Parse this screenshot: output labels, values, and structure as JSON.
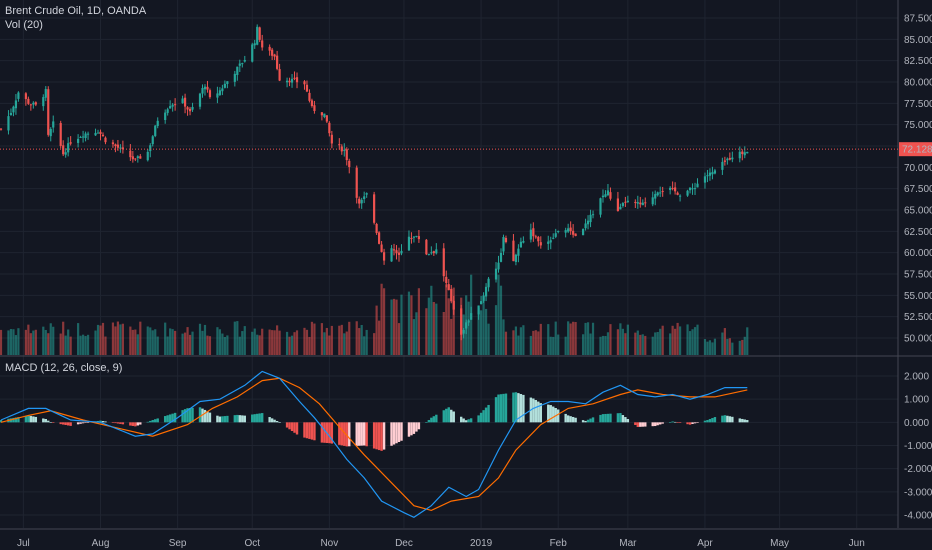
{
  "legend": {
    "symbol": "Brent Crude Oil, 1D, OANDA",
    "vol": "Vol (20)",
    "macd": "MACD (12, 26, close, 9)"
  },
  "last_price": "72.128",
  "colors": {
    "background": "#131722",
    "up": "#26a69a",
    "down": "#ef5350",
    "macd_line": "#2196f3",
    "signal_line": "#ff6d00",
    "hist_up_strong": "#26a69a",
    "hist_up_weak": "#b2dfdb",
    "hist_down_strong": "#ef5350",
    "hist_down_weak": "#ffcdd2",
    "price_line": "#ef5350"
  },
  "chart_data": [
    {
      "type": "candlestick",
      "title": "Brent Crude Oil, 1D, OANDA",
      "y_ticks": [
        "87.500",
        "85.000",
        "82.500",
        "80.000",
        "77.500",
        "75.000",
        "72.500",
        "70.000",
        "67.500",
        "65.000",
        "62.500",
        "60.000",
        "57.500",
        "55.000",
        "52.500",
        "50.000"
      ],
      "ylim": [
        48.5,
        88.5
      ],
      "x_ticks": [
        "Jul",
        "Aug",
        "Sep",
        "Oct",
        "Nov",
        "Dec",
        "2019",
        "Feb",
        "Mar",
        "Apr",
        "May",
        "Jun"
      ],
      "x_range": [
        "2018-06-22",
        "2019-06-18"
      ],
      "last_value": 72.128,
      "grid": true,
      "close_path": [
        [
          "2018-06-22",
          74.5
        ],
        [
          "2018-06-26",
          76.5
        ],
        [
          "2018-06-29",
          78.8
        ],
        [
          "2018-07-03",
          77.6
        ],
        [
          "2018-07-06",
          77.2
        ],
        [
          "2018-07-10",
          78.9
        ],
        [
          "2018-07-11",
          73.6
        ],
        [
          "2018-07-13",
          75.1
        ],
        [
          "2018-07-17",
          71.6
        ],
        [
          "2018-07-20",
          73.0
        ],
        [
          "2018-07-25",
          73.9
        ],
        [
          "2018-07-31",
          74.3
        ],
        [
          "2018-08-03",
          73.2
        ],
        [
          "2018-08-08",
          72.3
        ],
        [
          "2018-08-15",
          70.8
        ],
        [
          "2018-08-20",
          71.8
        ],
        [
          "2018-08-24",
          75.6
        ],
        [
          "2018-08-29",
          77.4
        ],
        [
          "2018-09-03",
          77.8
        ],
        [
          "2018-09-06",
          76.4
        ],
        [
          "2018-09-12",
          79.7
        ],
        [
          "2018-09-14",
          78.0
        ],
        [
          "2018-09-18",
          79.0
        ],
        [
          "2018-09-24",
          81.2
        ],
        [
          "2018-09-28",
          82.7
        ],
        [
          "2018-10-02",
          84.8
        ],
        [
          "2018-10-03",
          86.2
        ],
        [
          "2018-10-05",
          84.1
        ],
        [
          "2018-10-10",
          83.0
        ],
        [
          "2018-10-12",
          80.4
        ],
        [
          "2018-10-17",
          80.2
        ],
        [
          "2018-10-22",
          79.8
        ],
        [
          "2018-10-25",
          76.9
        ],
        [
          "2018-10-30",
          76.2
        ],
        [
          "2018-11-02",
          72.8
        ],
        [
          "2018-11-07",
          72.0
        ],
        [
          "2018-11-09",
          70.1
        ],
        [
          "2018-11-13",
          65.6
        ],
        [
          "2018-11-16",
          66.8
        ],
        [
          "2018-11-20",
          62.5
        ],
        [
          "2018-11-23",
          58.8
        ],
        [
          "2018-11-26",
          60.5
        ],
        [
          "2018-11-29",
          59.5
        ],
        [
          "2018-12-03",
          62.0
        ],
        [
          "2018-12-07",
          61.7
        ],
        [
          "2018-12-10",
          59.9
        ],
        [
          "2018-12-14",
          60.3
        ],
        [
          "2018-12-18",
          56.3
        ],
        [
          "2018-12-20",
          54.4
        ],
        [
          "2018-12-24",
          50.6
        ],
        [
          "2018-12-27",
          52.2
        ],
        [
          "2019-01-02",
          54.9
        ],
        [
          "2019-01-04",
          57.1
        ],
        [
          "2019-01-08",
          58.7
        ],
        [
          "2019-01-10",
          61.7
        ],
        [
          "2019-01-14",
          59.0
        ],
        [
          "2019-01-17",
          61.2
        ],
        [
          "2019-01-21",
          62.7
        ],
        [
          "2019-01-24",
          61.1
        ],
        [
          "2019-01-29",
          61.3
        ],
        [
          "2019-02-01",
          62.7
        ],
        [
          "2019-02-06",
          62.6
        ],
        [
          "2019-02-08",
          61.9
        ],
        [
          "2019-02-13",
          63.6
        ],
        [
          "2019-02-18",
          66.4
        ],
        [
          "2019-02-21",
          67.1
        ],
        [
          "2019-02-25",
          64.7
        ],
        [
          "2019-02-28",
          66.0
        ],
        [
          "2019-03-04",
          65.7
        ],
        [
          "2019-03-08",
          65.6
        ],
        [
          "2019-03-13",
          67.3
        ],
        [
          "2019-03-18",
          67.4
        ],
        [
          "2019-03-22",
          66.9
        ],
        [
          "2019-03-27",
          67.5
        ],
        [
          "2019-04-01",
          69.0
        ],
        [
          "2019-04-04",
          69.3
        ],
        [
          "2019-04-09",
          70.6
        ],
        [
          "2019-04-12",
          71.4
        ],
        [
          "2019-04-16",
          71.7
        ],
        [
          "2019-04-18",
          72.1
        ]
      ]
    },
    {
      "type": "bar",
      "title": "Vol (20)",
      "description_label": "Volume bars colored by candle direction"
    },
    {
      "type": "line",
      "title": "MACD (12, 26, close, 9)",
      "y_ticks": [
        "2.000",
        "1.000",
        "0.000",
        "-1.000",
        "-2.000",
        "-3.000",
        "-4.000"
      ],
      "ylim": [
        -4.6,
        2.5
      ],
      "series": [
        {
          "name": "MACD",
          "points": [
            [
              "2018-06-22",
              0.1
            ],
            [
              "2018-07-03",
              0.6
            ],
            [
              "2018-07-10",
              0.6
            ],
            [
              "2018-07-20",
              0.1
            ],
            [
              "2018-08-01",
              0.0
            ],
            [
              "2018-08-15",
              -0.6
            ],
            [
              "2018-08-22",
              -0.5
            ],
            [
              "2018-09-01",
              0.2
            ],
            [
              "2018-09-10",
              0.9
            ],
            [
              "2018-09-18",
              1.0
            ],
            [
              "2018-09-28",
              1.6
            ],
            [
              "2018-10-05",
              2.2
            ],
            [
              "2018-10-12",
              1.9
            ],
            [
              "2018-10-20",
              0.9
            ],
            [
              "2018-10-26",
              0.2
            ],
            [
              "2018-11-01",
              -0.6
            ],
            [
              "2018-11-08",
              -1.6
            ],
            [
              "2018-11-15",
              -2.4
            ],
            [
              "2018-11-22",
              -3.4
            ],
            [
              "2018-12-01",
              -3.9
            ],
            [
              "2018-12-05",
              -4.1
            ],
            [
              "2018-12-12",
              -3.6
            ],
            [
              "2018-12-19",
              -2.8
            ],
            [
              "2018-12-26",
              -3.2
            ],
            [
              "2018-12-31",
              -2.9
            ],
            [
              "2019-01-08",
              -1.2
            ],
            [
              "2019-01-15",
              0.1
            ],
            [
              "2019-01-22",
              0.6
            ],
            [
              "2019-01-29",
              0.9
            ],
            [
              "2019-02-05",
              0.9
            ],
            [
              "2019-02-12",
              0.8
            ],
            [
              "2019-02-19",
              1.3
            ],
            [
              "2019-02-26",
              1.6
            ],
            [
              "2019-03-05",
              1.2
            ],
            [
              "2019-03-12",
              1.1
            ],
            [
              "2019-03-19",
              1.2
            ],
            [
              "2019-03-26",
              1.0
            ],
            [
              "2019-04-02",
              1.2
            ],
            [
              "2019-04-09",
              1.5
            ],
            [
              "2019-04-18",
              1.5
            ]
          ]
        },
        {
          "name": "Signal",
          "points": [
            [
              "2018-06-22",
              0.0
            ],
            [
              "2018-07-03",
              0.3
            ],
            [
              "2018-07-12",
              0.5
            ],
            [
              "2018-07-25",
              0.1
            ],
            [
              "2018-08-10",
              -0.3
            ],
            [
              "2018-08-22",
              -0.6
            ],
            [
              "2018-09-05",
              -0.1
            ],
            [
              "2018-09-15",
              0.6
            ],
            [
              "2018-09-25",
              1.1
            ],
            [
              "2018-10-05",
              1.8
            ],
            [
              "2018-10-12",
              1.9
            ],
            [
              "2018-10-20",
              1.5
            ],
            [
              "2018-10-28",
              0.8
            ],
            [
              "2018-11-05",
              -0.2
            ],
            [
              "2018-11-15",
              -1.4
            ],
            [
              "2018-11-25",
              -2.5
            ],
            [
              "2018-12-05",
              -3.6
            ],
            [
              "2018-12-12",
              -3.8
            ],
            [
              "2018-12-20",
              -3.4
            ],
            [
              "2018-12-31",
              -3.2
            ],
            [
              "2019-01-08",
              -2.4
            ],
            [
              "2019-01-15",
              -1.2
            ],
            [
              "2019-01-25",
              -0.1
            ],
            [
              "2019-02-05",
              0.6
            ],
            [
              "2019-02-15",
              0.8
            ],
            [
              "2019-02-26",
              1.2
            ],
            [
              "2019-03-05",
              1.4
            ],
            [
              "2019-03-15",
              1.2
            ],
            [
              "2019-03-26",
              1.1
            ],
            [
              "2019-04-05",
              1.1
            ],
            [
              "2019-04-18",
              1.4
            ]
          ]
        }
      ]
    }
  ]
}
